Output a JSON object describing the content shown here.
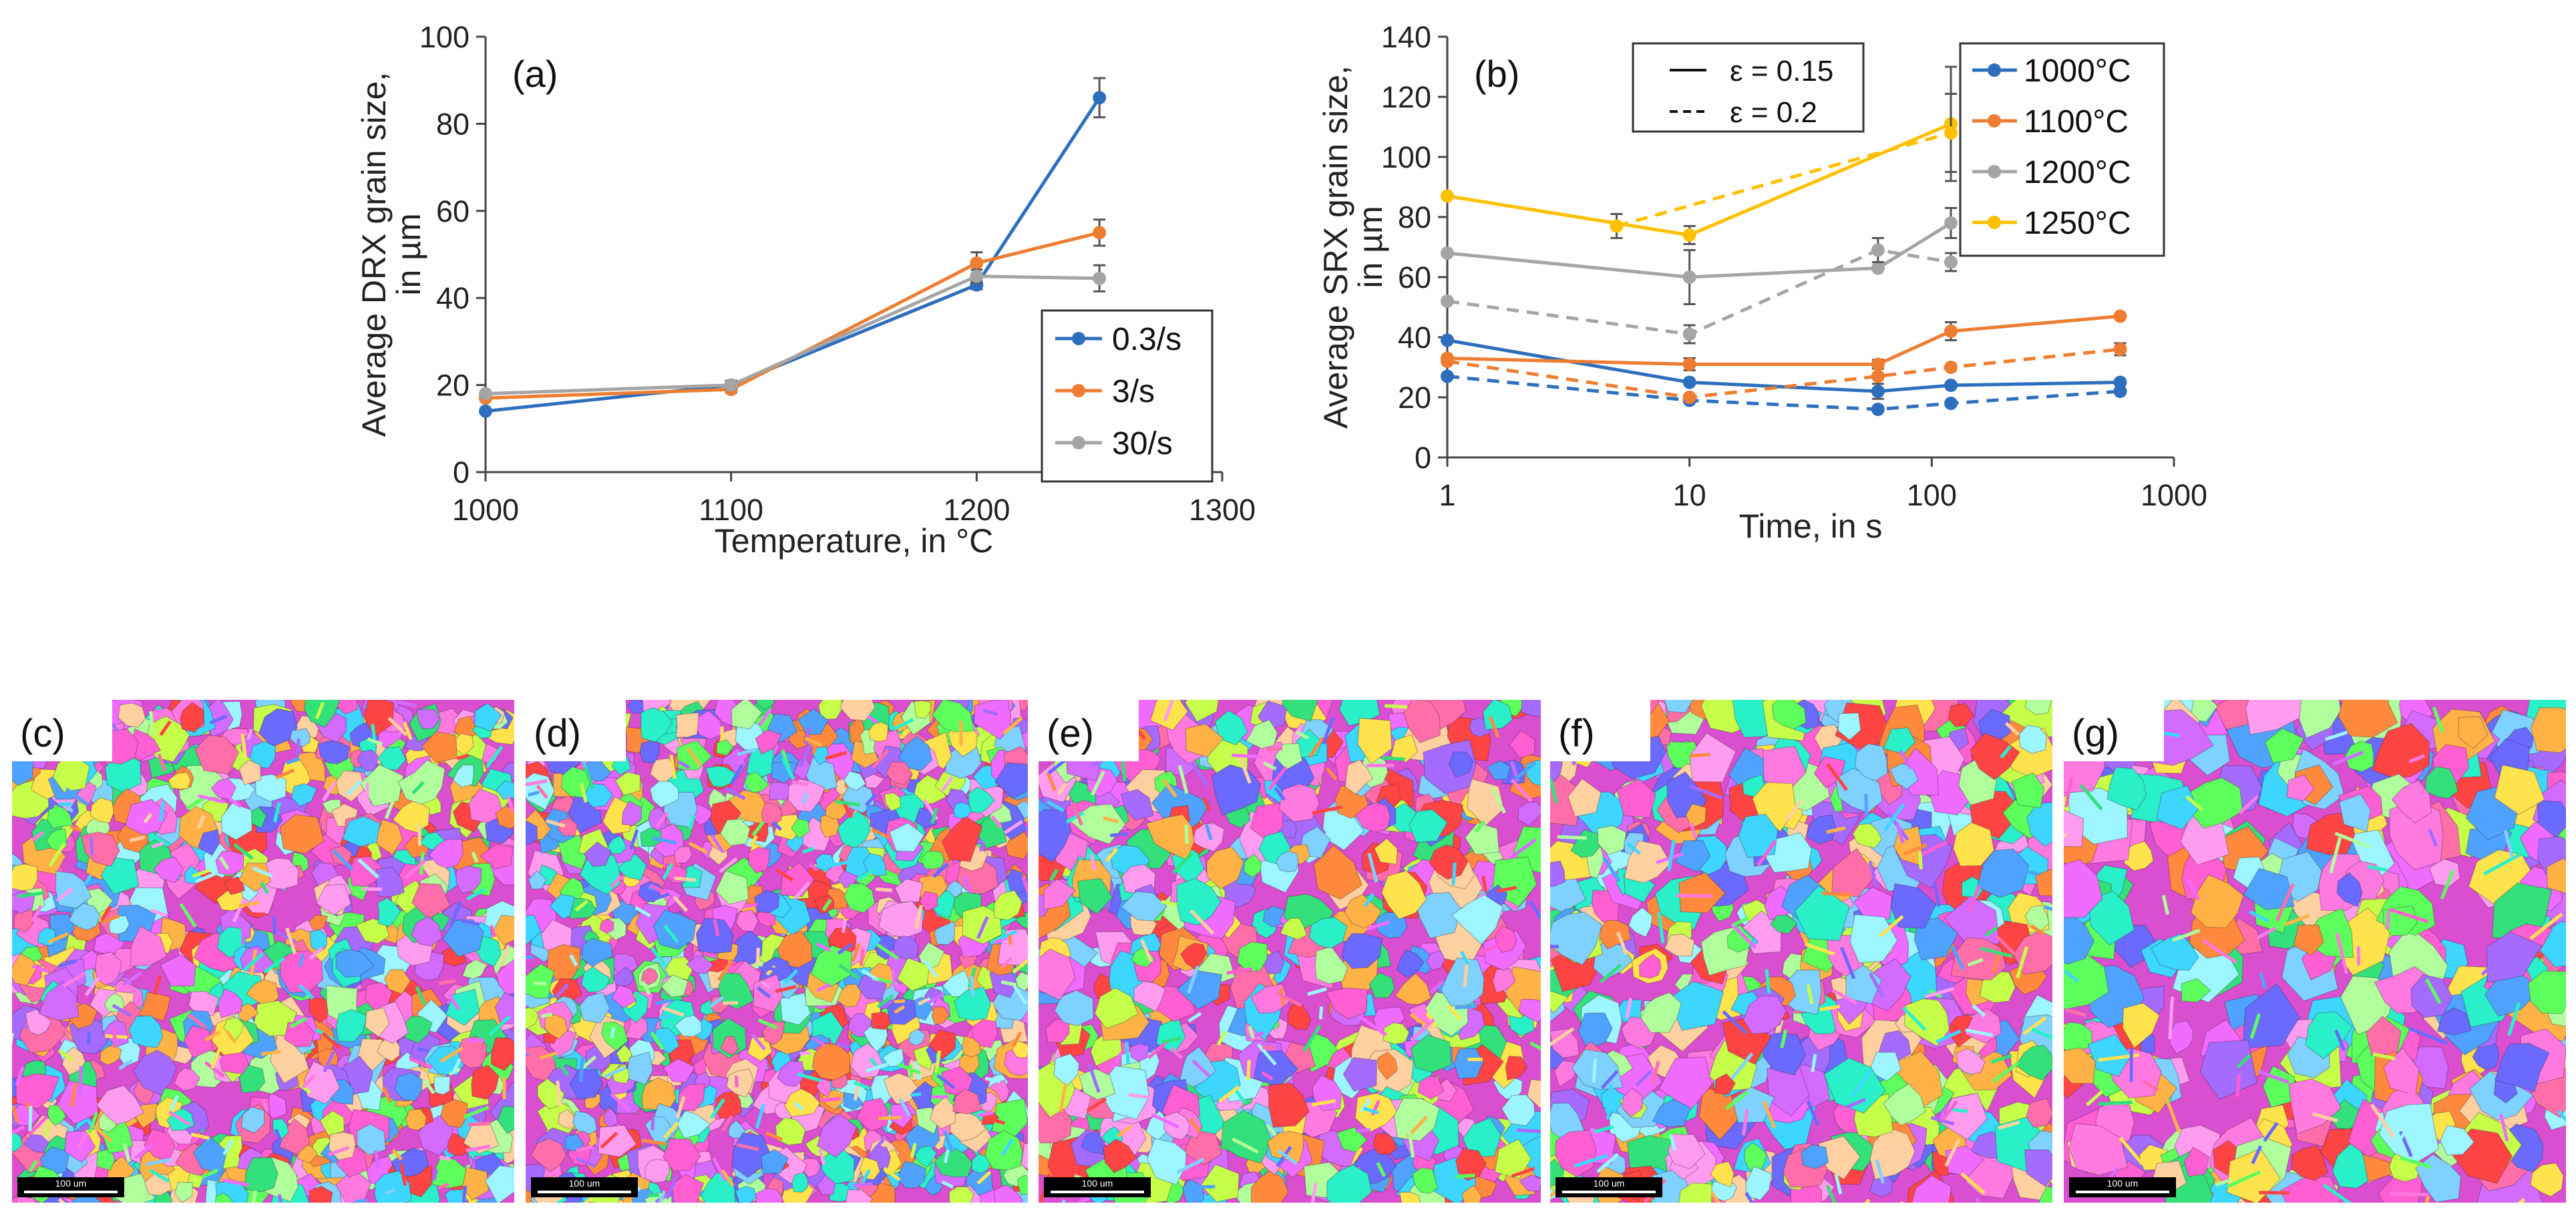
{
  "chart_data": [
    {
      "id": "a",
      "type": "line",
      "panel_label": "(a)",
      "xlabel": "Temperature, in °C",
      "ylabel": [
        "Average DRX grain size,",
        "in µm"
      ],
      "xlim": [
        1000,
        1300
      ],
      "ylim": [
        0,
        100
      ],
      "xticks": [
        1000,
        1100,
        1200,
        1300
      ],
      "yticks": [
        0,
        20,
        40,
        60,
        80,
        100
      ],
      "xtick_labels": [
        "1000",
        "1100",
        "1200",
        "1300"
      ],
      "ytick_labels": [
        "0",
        "20",
        "40",
        "60",
        "80",
        "100"
      ],
      "legend_position": "bottom-right",
      "series": [
        {
          "name": "0.3/s",
          "color": "#2e6fbd",
          "x": [
            1000,
            1100,
            1200,
            1250
          ],
          "values": [
            14,
            20,
            43,
            86
          ],
          "err": [
            0,
            1,
            1,
            4.5
          ]
        },
        {
          "name": "3/s",
          "color": "#ee7d31",
          "x": [
            1000,
            1100,
            1200,
            1250
          ],
          "values": [
            17,
            19,
            48,
            55
          ],
          "err": [
            0,
            0.8,
            2.5,
            3
          ]
        },
        {
          "name": "30/s",
          "color": "#a5a5a5",
          "x": [
            1000,
            1100,
            1200,
            1250
          ],
          "values": [
            18,
            20,
            45,
            44.5
          ],
          "err": [
            0,
            0.8,
            1.5,
            3
          ]
        }
      ]
    },
    {
      "id": "b",
      "type": "line",
      "panel_label": "(b)",
      "xscale": "log",
      "xlabel": "Time, in s",
      "ylabel": [
        "Average SRX grain size,",
        "in µm"
      ],
      "xlim": [
        1,
        1000
      ],
      "ylim": [
        0,
        140
      ],
      "xticks": [
        1,
        10,
        100,
        1000
      ],
      "yticks": [
        0,
        20,
        40,
        60,
        80,
        100,
        120,
        140
      ],
      "xtick_labels": [
        "1",
        "10",
        "100",
        "1000"
      ],
      "ytick_labels": [
        "0",
        "20",
        "40",
        "60",
        "80",
        "100",
        "120",
        "140"
      ],
      "legend_position": "top-right",
      "style_legend": [
        {
          "label": "ε = 0.15",
          "dash": "solid"
        },
        {
          "label": "ε = 0.2",
          "dash": "dashed"
        }
      ],
      "series": [
        {
          "name": "1000°C",
          "color": "#2e6fbd",
          "strain": "0.15",
          "x": [
            1,
            10,
            60,
            120,
            600
          ],
          "values": [
            39,
            25,
            22,
            24,
            25
          ],
          "err": [
            0,
            0,
            2.5,
            0,
            0
          ]
        },
        {
          "name": "1000°C",
          "color": "#2e6fbd",
          "strain": "0.2",
          "x": [
            1,
            10,
            60,
            120,
            600
          ],
          "values": [
            27,
            19,
            16,
            18,
            22
          ],
          "err": [
            0,
            0,
            0,
            0,
            0
          ]
        },
        {
          "name": "1100°C",
          "color": "#ee7d31",
          "strain": "0.15",
          "x": [
            1,
            10,
            60,
            120,
            600
          ],
          "values": [
            33,
            31,
            31,
            42,
            47
          ],
          "err": [
            0,
            2,
            1.5,
            3,
            0
          ]
        },
        {
          "name": "1100°C",
          "color": "#ee7d31",
          "strain": "0.2",
          "x": [
            1,
            10,
            60,
            120,
            600
          ],
          "values": [
            32,
            20,
            27,
            30,
            36
          ],
          "err": [
            0,
            0,
            0,
            0,
            2
          ]
        },
        {
          "name": "1200°C",
          "color": "#a5a5a5",
          "strain": "0.15",
          "x": [
            1,
            10,
            60,
            120
          ],
          "values": [
            68,
            60,
            63,
            78
          ],
          "err": [
            0,
            9,
            0,
            5
          ]
        },
        {
          "name": "1200°C",
          "color": "#a5a5a5",
          "strain": "0.2",
          "x": [
            1,
            10,
            60,
            120
          ],
          "values": [
            52,
            41,
            69,
            65
          ],
          "err": [
            0,
            3,
            4,
            3
          ]
        },
        {
          "name": "1250°C",
          "color": "#ffc000",
          "strain": "0.15",
          "x": [
            1,
            10,
            120
          ],
          "values": [
            87,
            74,
            111
          ],
          "err": [
            0,
            3,
            19
          ]
        },
        {
          "name": "1250°C",
          "color": "#ffc000",
          "strain": "0.2",
          "x": [
            5,
            120
          ],
          "values": [
            77,
            108
          ],
          "err": [
            4,
            13
          ]
        }
      ],
      "legend": [
        {
          "name": "1000°C",
          "color": "#2e6fbd"
        },
        {
          "name": "1100°C",
          "color": "#ee7d31"
        },
        {
          "name": "1200°C",
          "color": "#a5a5a5"
        },
        {
          "name": "1250°C",
          "color": "#ffc000"
        }
      ]
    }
  ],
  "micrographs": [
    {
      "label": "(c)",
      "scale_bar": "100 um",
      "seed": 11,
      "grains": 850
    },
    {
      "label": "(d)",
      "scale_bar": "100 um",
      "seed": 23,
      "grains": 1000
    },
    {
      "label": "(e)",
      "scale_bar": "100 um",
      "seed": 37,
      "grains": 620
    },
    {
      "label": "(f)",
      "scale_bar": "100 um",
      "seed": 51,
      "grains": 520
    },
    {
      "label": "(g)",
      "scale_bar": "100 um",
      "seed": 67,
      "grains": 360
    }
  ]
}
